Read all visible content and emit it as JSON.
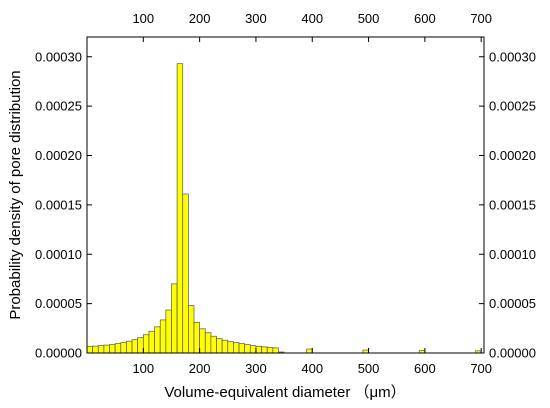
{
  "chart_data": {
    "type": "bar",
    "xlabel": "Volume-equivalent diameter （μm）",
    "ylabel": "Probability density of pore distribution",
    "xlim": [
      0,
      705
    ],
    "ylim": [
      0,
      0.00032
    ],
    "x_ticks": [
      100,
      200,
      300,
      400,
      500,
      600,
      700
    ],
    "y_ticks": [
      "0.00000",
      "0.00005",
      "0.00010",
      "0.00015",
      "0.00020",
      "0.00025",
      "0.00030"
    ],
    "y_tick_values": [
      0,
      5e-05,
      0.0001,
      0.00015,
      0.0002,
      0.00025,
      0.0003
    ],
    "bin_width": 10,
    "bins": [
      {
        "x": 0,
        "value": 6.5e-06
      },
      {
        "x": 10,
        "value": 7e-06
      },
      {
        "x": 20,
        "value": 7.5e-06
      },
      {
        "x": 30,
        "value": 8e-06
      },
      {
        "x": 40,
        "value": 8.5e-06
      },
      {
        "x": 50,
        "value": 9.5e-06
      },
      {
        "x": 60,
        "value": 1.05e-05
      },
      {
        "x": 70,
        "value": 1.2e-05
      },
      {
        "x": 80,
        "value": 1.35e-05
      },
      {
        "x": 90,
        "value": 1.55e-05
      },
      {
        "x": 100,
        "value": 1.85e-05
      },
      {
        "x": 110,
        "value": 2.2e-05
      },
      {
        "x": 120,
        "value": 2.65e-05
      },
      {
        "x": 130,
        "value": 3.35e-05
      },
      {
        "x": 140,
        "value": 4.35e-05
      },
      {
        "x": 150,
        "value": 7e-05
      },
      {
        "x": 160,
        "value": 0.000293
      },
      {
        "x": 170,
        "value": 0.000161
      },
      {
        "x": 180,
        "value": 4.8e-05
      },
      {
        "x": 190,
        "value": 3.1e-05
      },
      {
        "x": 200,
        "value": 2.45e-05
      },
      {
        "x": 210,
        "value": 2.05e-05
      },
      {
        "x": 220,
        "value": 1.7e-05
      },
      {
        "x": 230,
        "value": 1.45e-05
      },
      {
        "x": 240,
        "value": 1.3e-05
      },
      {
        "x": 250,
        "value": 1.15e-05
      },
      {
        "x": 260,
        "value": 1.05e-05
      },
      {
        "x": 270,
        "value": 9.5e-06
      },
      {
        "x": 280,
        "value": 8.5e-06
      },
      {
        "x": 290,
        "value": 7.5e-06
      },
      {
        "x": 300,
        "value": 6.8e-06
      },
      {
        "x": 310,
        "value": 6.2e-06
      },
      {
        "x": 320,
        "value": 5.6e-06
      },
      {
        "x": 330,
        "value": 5.2e-06
      },
      {
        "x": 340,
        "value": 1e-06
      },
      {
        "x": 390,
        "value": 4e-06
      },
      {
        "x": 490,
        "value": 3e-06
      },
      {
        "x": 590,
        "value": 2.5e-06
      },
      {
        "x": 690,
        "value": 2.2e-06
      }
    ],
    "grid": false,
    "bar_color": "#ffff00",
    "bar_edge_color": "#555555"
  }
}
